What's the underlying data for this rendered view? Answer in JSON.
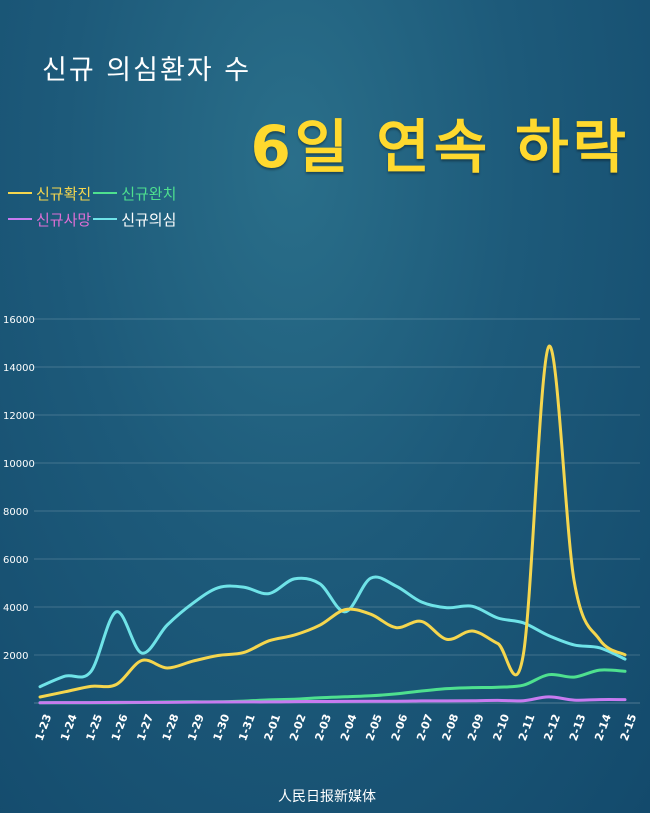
{
  "header": {
    "subtitle": "신규 의심환자 수",
    "headline": "6일 연속 하락"
  },
  "footer": {
    "logo_text": "人民日报新媒体"
  },
  "colors": {
    "confirmed": "#f5d64e",
    "recovered": "#4ee08f",
    "deaths": "#c77bf0",
    "suspected": "#6fe3e8"
  },
  "chart_data": {
    "type": "line",
    "x": [
      "1-23",
      "1-24",
      "1-25",
      "1-26",
      "1-27",
      "1-28",
      "1-29",
      "1-30",
      "1-31",
      "2-01",
      "2-02",
      "2-03",
      "2-04",
      "2-05",
      "2-06",
      "2-07",
      "2-08",
      "2-09",
      "2-10",
      "2-11",
      "2-12",
      "2-13",
      "2-14",
      "2-15"
    ],
    "ylim": [
      0,
      16000
    ],
    "yticks": [
      2000,
      4000,
      6000,
      8000,
      10000,
      12000,
      14000,
      16000
    ],
    "grid": true,
    "legend_position": "top-left",
    "series": [
      {
        "name": "신규확진",
        "color_key": "confirmed",
        "values": [
          250,
          470,
          690,
          770,
          1770,
          1460,
          1740,
          1980,
          2100,
          2590,
          2830,
          3240,
          3890,
          3700,
          3140,
          3400,
          2650,
          3000,
          2480,
          2010,
          14850,
          5090,
          2640,
          2010
        ]
      },
      {
        "name": "신규완치",
        "color_key": "recovered",
        "values": [
          10,
          10,
          10,
          10,
          20,
          40,
          50,
          50,
          80,
          130,
          160,
          220,
          260,
          300,
          380,
          500,
          600,
          640,
          660,
          740,
          1180,
          1080,
          1370,
          1320
        ]
      },
      {
        "name": "신규사망",
        "color_key": "deaths",
        "values": [
          8,
          16,
          15,
          24,
          26,
          26,
          38,
          43,
          46,
          45,
          57,
          64,
          65,
          73,
          73,
          86,
          89,
          97,
          108,
          97,
          254,
          121,
          143,
          142
        ]
      },
      {
        "name": "신규의심",
        "color_key": "suspected",
        "values": [
          680,
          1120,
          1310,
          3800,
          2080,
          3250,
          4150,
          4800,
          4830,
          4560,
          5170,
          4970,
          3800,
          5200,
          4870,
          4210,
          3970,
          4030,
          3540,
          3340,
          2810,
          2420,
          2300,
          1830
        ]
      }
    ]
  }
}
